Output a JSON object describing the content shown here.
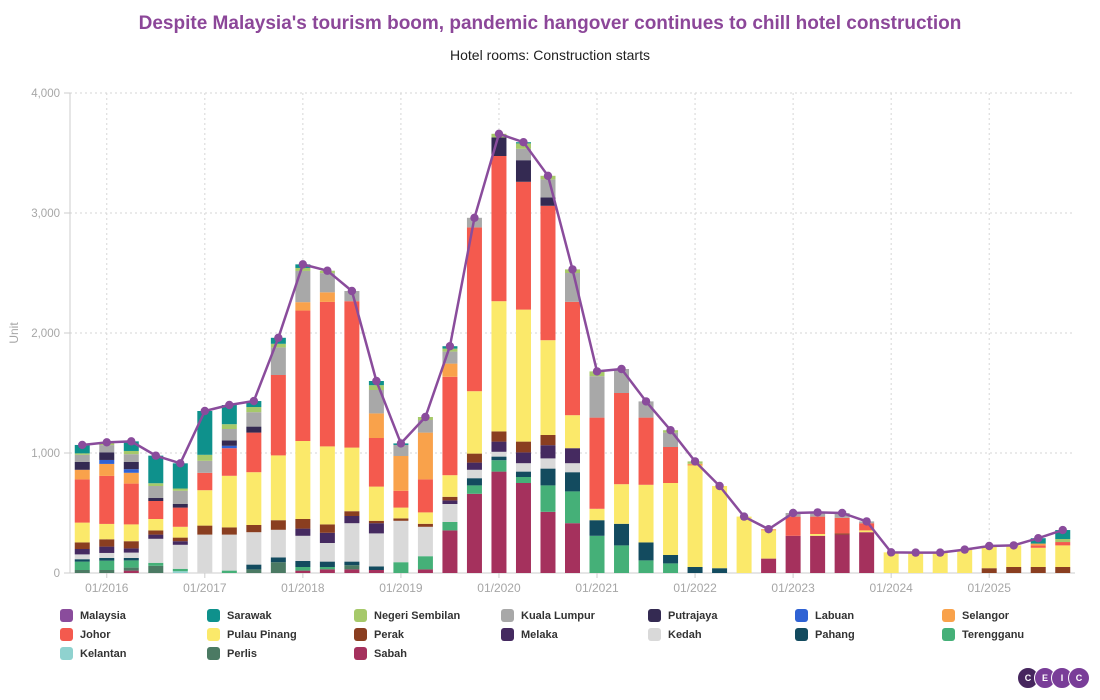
{
  "header": {
    "title": "Despite Malaysia's tourism boom, pandemic hangover continues to chill hotel construction",
    "subtitle": "Hotel rooms: Construction starts"
  },
  "y_axis": {
    "title": "Unit",
    "tick_labels": [
      "0",
      "1,000",
      "2,000",
      "3,000",
      "4,000"
    ],
    "tick_values": [
      0,
      1000,
      2000,
      3000,
      4000
    ]
  },
  "x_axis": {
    "tick_labels": [
      "01/2016",
      "01/2017",
      "01/2018",
      "01/2019",
      "01/2020",
      "01/2021",
      "01/2022",
      "01/2023",
      "01/2024",
      "01/2025"
    ],
    "tick_indices": [
      1,
      5,
      9,
      13,
      17,
      21,
      25,
      29,
      33,
      37
    ]
  },
  "legend": {
    "items": [
      "Malaysia",
      "Sarawak",
      "Negeri Sembilan",
      "Kuala Lumpur",
      "Putrajaya",
      "Labuan",
      "Selangor",
      "Johor",
      "Pulau Pinang",
      "Perak",
      "Melaka",
      "Kedah",
      "Pahang",
      "Terengganu",
      "Kelantan",
      "Perlis",
      "Sabah"
    ]
  },
  "logo": {
    "letters": [
      "C",
      "E",
      "I",
      "C"
    ],
    "colors": [
      "#46265e",
      "#793d98",
      "#793d98",
      "#793d98"
    ]
  },
  "colors": {
    "title": "#8c4799",
    "axis_label": "#a6a6a6",
    "axis_line": "#cccccc",
    "gridline": "#d6d6d6"
  },
  "chart_data": {
    "type": "bar",
    "subtype": "stacked-bars-with-total-line",
    "title": "Despite Malaysia's tourism boom, pandemic hangover continues to chill hotel construction",
    "subtitle": "Hotel rooms: Construction starts",
    "xlabel": "",
    "ylabel": "Unit",
    "ylim": [
      0,
      4000
    ],
    "grid": true,
    "legend_position": "bottom",
    "x": [
      "10/2015",
      "01/2016",
      "04/2016",
      "07/2016",
      "10/2016",
      "01/2017",
      "04/2017",
      "07/2017",
      "10/2017",
      "01/2018",
      "04/2018",
      "07/2018",
      "10/2018",
      "01/2019",
      "04/2019",
      "07/2019",
      "10/2019",
      "01/2020",
      "04/2020",
      "07/2020",
      "10/2020",
      "01/2021",
      "04/2021",
      "07/2021",
      "10/2021",
      "01/2022",
      "04/2022",
      "07/2022",
      "10/2022",
      "01/2023",
      "04/2023",
      "07/2023",
      "10/2023",
      "01/2024",
      "04/2024",
      "07/2024",
      "10/2024",
      "01/2025",
      "04/2025",
      "07/2025",
      "10/2025"
    ],
    "series": [
      {
        "name": "Sabah",
        "color": "#a5315d",
        "values": [
          0,
          0,
          20,
          0,
          0,
          0,
          0,
          0,
          0,
          20,
          30,
          30,
          25,
          0,
          30,
          355,
          660,
          845,
          750,
          510,
          415,
          0,
          0,
          0,
          0,
          0,
          0,
          0,
          120,
          310,
          310,
          320,
          340,
          0,
          0,
          0,
          0,
          0,
          0,
          0,
          0
        ]
      },
      {
        "name": "Perlis",
        "color": "#4b7a63",
        "values": [
          25,
          25,
          25,
          60,
          0,
          0,
          0,
          30,
          90,
          0,
          0,
          35,
          0,
          0,
          0,
          0,
          0,
          0,
          0,
          0,
          0,
          0,
          0,
          0,
          0,
          0,
          0,
          0,
          0,
          0,
          0,
          0,
          0,
          0,
          0,
          0,
          0,
          0,
          0,
          0,
          0
        ]
      },
      {
        "name": "Kelantan",
        "color": "#8fd2cf",
        "values": [
          0,
          0,
          0,
          0,
          15,
          0,
          0,
          0,
          0,
          0,
          0,
          0,
          0,
          0,
          0,
          0,
          0,
          0,
          0,
          0,
          0,
          0,
          0,
          0,
          0,
          0,
          0,
          0,
          0,
          0,
          0,
          0,
          0,
          0,
          0,
          0,
          0,
          0,
          0,
          0,
          0
        ]
      },
      {
        "name": "Terengganu",
        "color": "#45b078",
        "values": [
          70,
          78,
          60,
          25,
          20,
          0,
          20,
          0,
          0,
          30,
          20,
          0,
          0,
          90,
          110,
          70,
          70,
          95,
          50,
          220,
          265,
          310,
          230,
          105,
          80,
          0,
          0,
          0,
          0,
          0,
          0,
          0,
          0,
          0,
          0,
          0,
          0,
          0,
          0,
          0,
          0
        ]
      },
      {
        "name": "Pahang",
        "color": "#134b5f",
        "values": [
          20,
          22,
          20,
          0,
          0,
          0,
          0,
          40,
          40,
          50,
          45,
          30,
          30,
          0,
          0,
          0,
          60,
          30,
          45,
          140,
          160,
          130,
          180,
          150,
          70,
          50,
          40,
          0,
          0,
          0,
          0,
          0,
          0,
          0,
          0,
          0,
          0,
          0,
          0,
          0,
          0
        ]
      },
      {
        "name": "Kedah",
        "color": "#d9d9d9",
        "values": [
          40,
          42,
          45,
          200,
          200,
          320,
          300,
          270,
          230,
          210,
          155,
          320,
          275,
          345,
          245,
          150,
          70,
          40,
          70,
          85,
          75,
          0,
          0,
          0,
          0,
          0,
          0,
          0,
          0,
          0,
          0,
          0,
          0,
          0,
          0,
          0,
          0,
          0,
          0,
          0,
          0
        ]
      },
      {
        "name": "Melaka",
        "color": "#452a60",
        "values": [
          45,
          53,
          35,
          35,
          30,
          0,
          0,
          0,
          0,
          60,
          85,
          60,
          85,
          0,
          0,
          30,
          60,
          85,
          90,
          110,
          125,
          0,
          0,
          0,
          0,
          0,
          0,
          0,
          0,
          0,
          0,
          0,
          0,
          0,
          0,
          0,
          0,
          0,
          0,
          0,
          0
        ]
      },
      {
        "name": "Perak",
        "color": "#8a3e20",
        "values": [
          55,
          61,
          60,
          35,
          30,
          75,
          60,
          60,
          80,
          80,
          70,
          40,
          20,
          20,
          25,
          30,
          75,
          85,
          90,
          85,
          0,
          0,
          0,
          0,
          0,
          0,
          0,
          0,
          0,
          0,
          0,
          10,
          0,
          0,
          0,
          0,
          0,
          40,
          50,
          50,
          50
        ]
      },
      {
        "name": "Pulau Pinang",
        "color": "#fbe96a",
        "values": [
          165,
          128,
          140,
          95,
          90,
          295,
          430,
          440,
          540,
          650,
          650,
          530,
          285,
          90,
          95,
          180,
          520,
          1085,
          1100,
          790,
          275,
          95,
          330,
          480,
          600,
          845,
          685,
          470,
          235,
          0,
          15,
          0,
          15,
          172,
          170,
          170,
          190,
          185,
          180,
          160,
          180
        ]
      },
      {
        "name": "Johor",
        "color": "#f45a4e",
        "values": [
          360,
          400,
          340,
          150,
          160,
          145,
          230,
          330,
          670,
          1087,
          1204,
          1220,
          405,
          140,
          275,
          820,
          1365,
          1210,
          1065,
          1120,
          945,
          760,
          760,
          560,
          300,
          0,
          0,
          0,
          0,
          160,
          145,
          130,
          60,
          0,
          0,
          0,
          0,
          0,
          0,
          20,
          28
        ]
      },
      {
        "name": "Selangor",
        "color": "#f9a24b",
        "values": [
          80,
          100,
          90,
          0,
          0,
          0,
          0,
          0,
          0,
          70,
          80,
          0,
          205,
          290,
          390,
          110,
          0,
          0,
          0,
          0,
          0,
          0,
          0,
          0,
          0,
          15,
          0,
          0,
          10,
          0,
          0,
          0,
          0,
          0,
          0,
          0,
          5,
          0,
          0,
          15,
          0
        ]
      },
      {
        "name": "Labuan",
        "color": "#2f62d4",
        "values": [
          0,
          33,
          30,
          0,
          0,
          0,
          20,
          0,
          0,
          0,
          0,
          0,
          0,
          0,
          0,
          0,
          0,
          0,
          0,
          0,
          0,
          0,
          0,
          0,
          0,
          0,
          0,
          0,
          0,
          0,
          0,
          0,
          0,
          0,
          0,
          0,
          0,
          0,
          0,
          0,
          0
        ]
      },
      {
        "name": "Putrajaya",
        "color": "#342a52",
        "values": [
          65,
          64,
          60,
          25,
          30,
          0,
          45,
          50,
          0,
          0,
          0,
          0,
          0,
          0,
          0,
          0,
          0,
          155,
          180,
          70,
          0,
          0,
          0,
          0,
          0,
          0,
          0,
          0,
          0,
          0,
          0,
          0,
          0,
          0,
          0,
          0,
          0,
          0,
          0,
          0,
          0
        ]
      },
      {
        "name": "Kuala Lumpur",
        "color": "#a8a8a8",
        "values": [
          60,
          60,
          65,
          100,
          110,
          100,
          95,
          120,
          230,
          260,
          160,
          85,
          195,
          92,
          105,
          100,
          80,
          0,
          95,
          150,
          240,
          345,
          200,
          135,
          120,
          0,
          0,
          0,
          0,
          30,
          35,
          40,
          15,
          0,
          0,
          0,
          0,
          0,
          0,
          0,
          0
        ]
      },
      {
        "name": "Negeri Sembilan",
        "color": "#a6c96a",
        "values": [
          12,
          23,
          27,
          23,
          19,
          50,
          40,
          43,
          30,
          25,
          20,
          0,
          40,
          0,
          25,
          25,
          0,
          30,
          45,
          30,
          30,
          40,
          0,
          0,
          20,
          20,
          0,
          0,
          0,
          0,
          0,
          0,
          0,
          0,
          0,
          0,
          0,
          0,
          0,
          0,
          25
        ]
      },
      {
        "name": "Sarawak",
        "color": "#0e918c",
        "values": [
          70,
          0,
          80,
          230,
          210,
          365,
          160,
          50,
          50,
          30,
          0,
          0,
          35,
          13,
          0,
          20,
          0,
          0,
          10,
          0,
          0,
          0,
          0,
          0,
          0,
          0,
          0,
          0,
          0,
          0,
          0,
          0,
          0,
          0,
          0,
          0,
          0,
          0,
          0,
          45,
          75
        ]
      }
    ],
    "line_series": {
      "name": "Malaysia",
      "color": "#8a4c9c",
      "values": [
        1067,
        1089,
        1097,
        978,
        914,
        1350,
        1400,
        1433,
        1960,
        2572,
        2519,
        2350,
        1600,
        1080,
        1300,
        1890,
        2960,
        3660,
        3590,
        3310,
        2530,
        1680,
        1700,
        1430,
        1190,
        930,
        725,
        470,
        365,
        500,
        505,
        500,
        430,
        172,
        170,
        170,
        195,
        225,
        230,
        290,
        358
      ]
    }
  }
}
